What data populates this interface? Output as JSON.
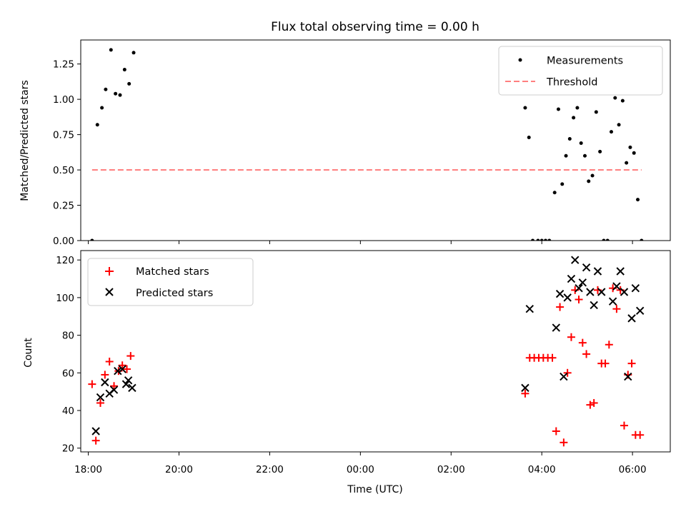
{
  "chart_data": [
    {
      "type": "scatter",
      "title": "Flux total observing time = 0.00 h",
      "ylabel": "Matched/Predicted stars",
      "xlim": [
        "17:50",
        "06:50"
      ],
      "ylim": [
        0,
        1.42
      ],
      "yticks": [
        "0.00",
        "0.25",
        "0.50",
        "0.75",
        "1.00",
        "1.25"
      ],
      "legend_position": "top-right",
      "series": [
        {
          "name": "Measurements",
          "color": "#000000",
          "marker": "dot",
          "points": [
            [
              "18:05",
              0.0
            ],
            [
              "18:12",
              0.82
            ],
            [
              "18:18",
              0.94
            ],
            [
              "18:23",
              1.07
            ],
            [
              "18:30",
              1.35
            ],
            [
              "18:36",
              1.04
            ],
            [
              "18:42",
              1.03
            ],
            [
              "18:48",
              1.21
            ],
            [
              "18:54",
              1.11
            ],
            [
              "19:00",
              1.33
            ],
            [
              "03:38",
              0.94
            ],
            [
              "03:43",
              0.73
            ],
            [
              "03:48",
              0.0
            ],
            [
              "03:55",
              0.0
            ],
            [
              "04:00",
              0.0
            ],
            [
              "04:05",
              0.0
            ],
            [
              "04:10",
              0.0
            ],
            [
              "04:17",
              0.34
            ],
            [
              "04:22",
              0.93
            ],
            [
              "04:27",
              0.4
            ],
            [
              "04:32",
              0.6
            ],
            [
              "04:37",
              0.72
            ],
            [
              "04:42",
              0.87
            ],
            [
              "04:47",
              0.94
            ],
            [
              "04:52",
              0.69
            ],
            [
              "04:57",
              0.6
            ],
            [
              "05:02",
              0.42
            ],
            [
              "05:07",
              0.46
            ],
            [
              "05:12",
              0.91
            ],
            [
              "05:17",
              0.63
            ],
            [
              "05:22",
              0.0
            ],
            [
              "05:27",
              0.0
            ],
            [
              "05:32",
              0.77
            ],
            [
              "05:37",
              1.01
            ],
            [
              "05:42",
              0.82
            ],
            [
              "05:47",
              0.99
            ],
            [
              "05:52",
              0.55
            ],
            [
              "05:57",
              0.66
            ],
            [
              "06:02",
              0.62
            ],
            [
              "06:07",
              0.29
            ],
            [
              "06:12",
              0.0
            ]
          ]
        },
        {
          "name": "Threshold",
          "color": "#ff7f7f",
          "line_style": "dashed",
          "points": [
            [
              "18:05",
              0.5
            ],
            [
              "06:12",
              0.5
            ]
          ]
        }
      ]
    },
    {
      "type": "scatter",
      "ylabel": "Count",
      "xlabel": "Time (UTC)",
      "xlim": [
        "17:50",
        "06:50"
      ],
      "ylim": [
        18,
        125
      ],
      "yticks": [
        "20",
        "40",
        "60",
        "80",
        "100",
        "120"
      ],
      "xticks": [
        "18:00",
        "20:00",
        "22:00",
        "00:00",
        "02:00",
        "04:00",
        "06:00"
      ],
      "legend_position": "top-left",
      "series": [
        {
          "name": "Matched stars",
          "color": "#ff0000",
          "marker": "plus",
          "points": [
            [
              "18:05",
              54
            ],
            [
              "18:10",
              24
            ],
            [
              "18:16",
              44
            ],
            [
              "18:22",
              59
            ],
            [
              "18:28",
              66
            ],
            [
              "18:34",
              53
            ],
            [
              "18:40",
              61
            ],
            [
              "18:45",
              64
            ],
            [
              "18:51",
              62
            ],
            [
              "18:56",
              69
            ],
            [
              "03:38",
              49
            ],
            [
              "03:44",
              68
            ],
            [
              "03:50",
              68
            ],
            [
              "03:56",
              68
            ],
            [
              "04:02",
              68
            ],
            [
              "04:08",
              68
            ],
            [
              "04:14",
              68
            ],
            [
              "04:19",
              29
            ],
            [
              "04:24",
              95
            ],
            [
              "04:29",
              23
            ],
            [
              "04:34",
              60
            ],
            [
              "04:39",
              79
            ],
            [
              "04:44",
              104
            ],
            [
              "04:49",
              99
            ],
            [
              "04:54",
              76
            ],
            [
              "04:59",
              70
            ],
            [
              "05:04",
              43
            ],
            [
              "05:09",
              44
            ],
            [
              "05:14",
              104
            ],
            [
              "05:19",
              65
            ],
            [
              "05:24",
              65
            ],
            [
              "05:29",
              75
            ],
            [
              "05:34",
              105
            ],
            [
              "05:39",
              94
            ],
            [
              "05:44",
              104
            ],
            [
              "05:49",
              32
            ],
            [
              "05:54",
              59
            ],
            [
              "05:59",
              65
            ],
            [
              "06:04",
              27
            ],
            [
              "06:10",
              27
            ]
          ]
        },
        {
          "name": "Predicted stars",
          "color": "#000000",
          "marker": "x",
          "points": [
            [
              "18:10",
              29
            ],
            [
              "18:16",
              47
            ],
            [
              "18:22",
              55
            ],
            [
              "18:28",
              49
            ],
            [
              "18:34",
              51
            ],
            [
              "18:39",
              61
            ],
            [
              "18:45",
              62
            ],
            [
              "18:50",
              54
            ],
            [
              "18:53",
              56
            ],
            [
              "18:58",
              52
            ],
            [
              "03:38",
              52
            ],
            [
              "03:44",
              94
            ],
            [
              "04:19",
              84
            ],
            [
              "04:24",
              102
            ],
            [
              "04:29",
              58
            ],
            [
              "04:34",
              100
            ],
            [
              "04:39",
              110
            ],
            [
              "04:44",
              120
            ],
            [
              "04:49",
              105
            ],
            [
              "04:54",
              108
            ],
            [
              "04:59",
              116
            ],
            [
              "05:04",
              103
            ],
            [
              "05:09",
              96
            ],
            [
              "05:14",
              114
            ],
            [
              "05:19",
              103
            ],
            [
              "05:34",
              98
            ],
            [
              "05:39",
              106
            ],
            [
              "05:44",
              114
            ],
            [
              "05:49",
              103
            ],
            [
              "05:54",
              58
            ],
            [
              "05:59",
              89
            ],
            [
              "06:04",
              105
            ],
            [
              "06:10",
              93
            ]
          ]
        }
      ]
    }
  ]
}
